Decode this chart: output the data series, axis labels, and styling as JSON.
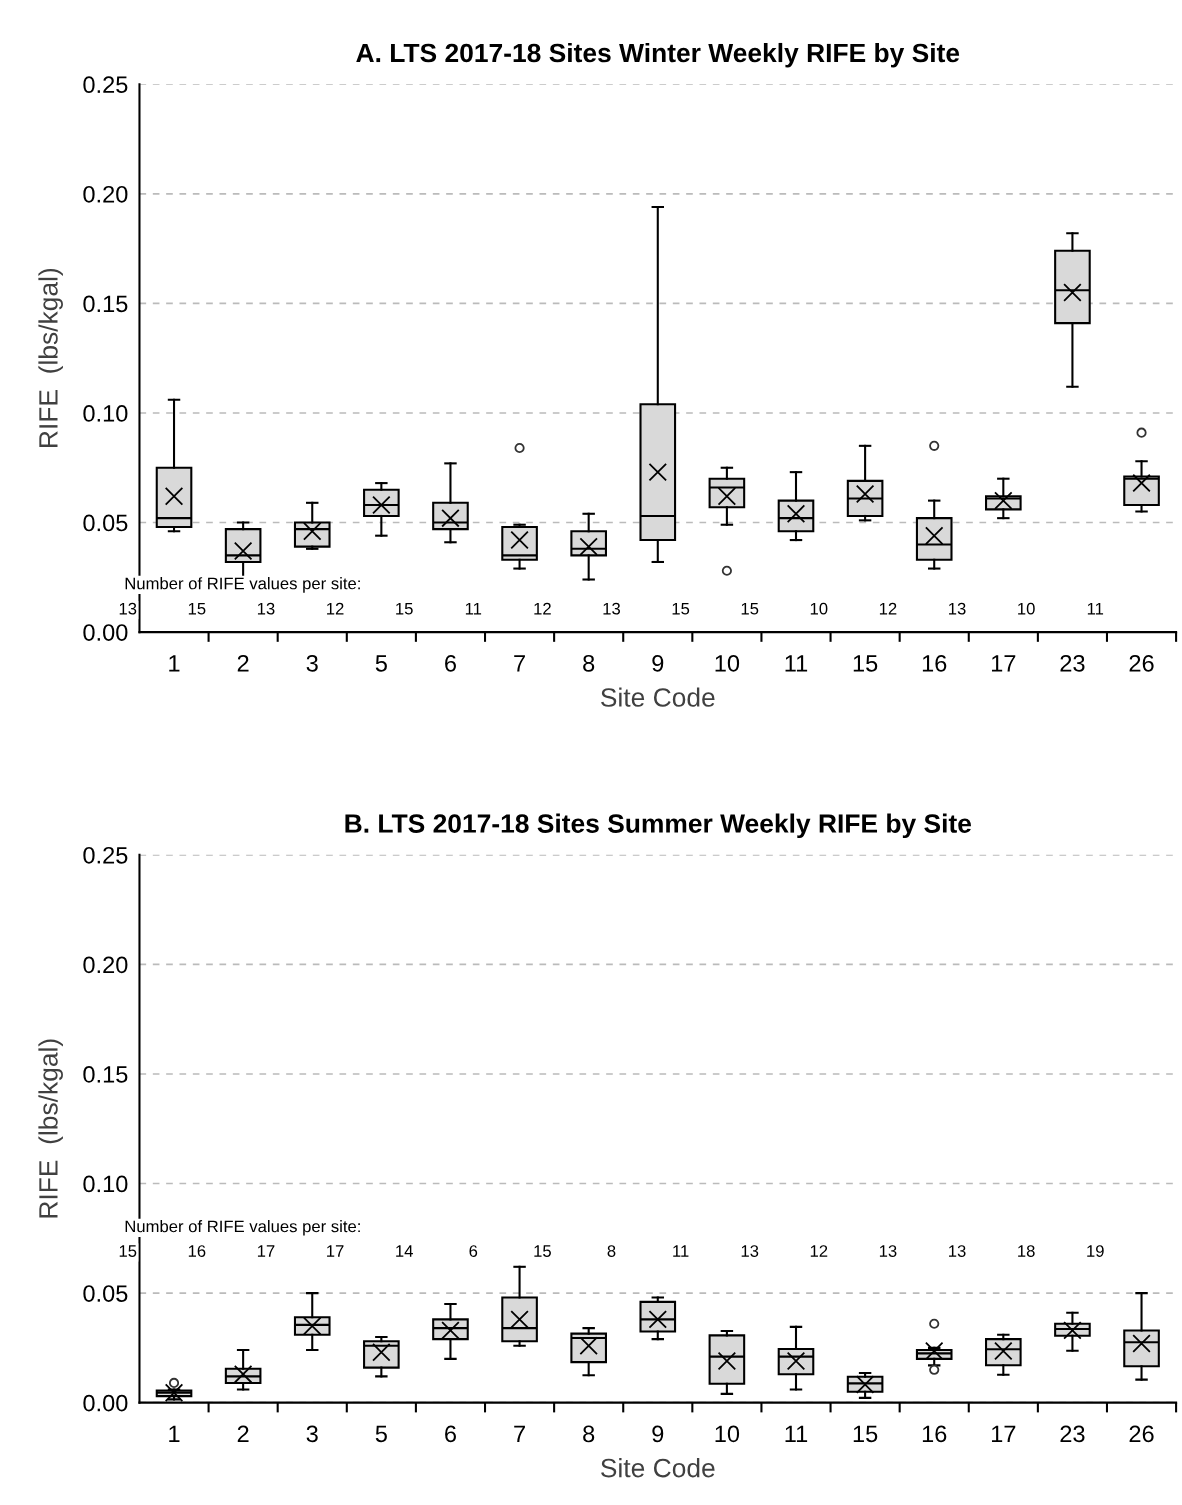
{
  "chart_data": [
    {
      "type": "box",
      "title": "A. LTS 2017-18 Sites Winter Weekly RIFE by Site",
      "xlabel": "Site Code",
      "ylabel": "RIFE  (lbs/kgal)",
      "categories": [
        "1",
        "2",
        "3",
        "5",
        "6",
        "7",
        "8",
        "9",
        "10",
        "11",
        "15",
        "16",
        "17",
        "23",
        "26"
      ],
      "boxes": [
        {
          "low": 0.046,
          "q1": 0.048,
          "median": 0.052,
          "q3": 0.075,
          "high": 0.106,
          "mean": 0.062
        },
        {
          "low": 0.024,
          "q1": 0.032,
          "median": 0.035,
          "q3": 0.047,
          "high": 0.05,
          "mean": 0.037
        },
        {
          "low": 0.038,
          "q1": 0.039,
          "median": 0.047,
          "q3": 0.05,
          "high": 0.059,
          "mean": 0.046
        },
        {
          "low": 0.044,
          "q1": 0.053,
          "median": 0.058,
          "q3": 0.065,
          "high": 0.068,
          "mean": 0.058
        },
        {
          "low": 0.041,
          "q1": 0.047,
          "median": 0.05,
          "q3": 0.059,
          "high": 0.077,
          "mean": 0.052
        },
        {
          "low": 0.029,
          "q1": 0.033,
          "median": 0.035,
          "q3": 0.048,
          "high": 0.049,
          "mean": 0.042,
          "outliers": [
            0.084
          ]
        },
        {
          "low": 0.024,
          "q1": 0.035,
          "median": 0.038,
          "q3": 0.046,
          "high": 0.054,
          "mean": 0.039
        },
        {
          "low": 0.032,
          "q1": 0.042,
          "median": 0.053,
          "q3": 0.104,
          "high": 0.194,
          "mean": 0.073
        },
        {
          "low": 0.049,
          "q1": 0.057,
          "median": 0.066,
          "q3": 0.07,
          "high": 0.075,
          "mean": 0.062,
          "outliers": [
            0.028
          ]
        },
        {
          "low": 0.042,
          "q1": 0.046,
          "median": 0.052,
          "q3": 0.06,
          "high": 0.073,
          "mean": 0.054
        },
        {
          "low": 0.051,
          "q1": 0.053,
          "median": 0.061,
          "q3": 0.069,
          "high": 0.085,
          "mean": 0.063
        },
        {
          "low": 0.029,
          "q1": 0.033,
          "median": 0.04,
          "q3": 0.052,
          "high": 0.06,
          "mean": 0.044,
          "outliers": [
            0.085
          ]
        },
        {
          "low": 0.052,
          "q1": 0.056,
          "median": 0.061,
          "q3": 0.062,
          "high": 0.07,
          "mean": 0.06
        },
        {
          "low": 0.112,
          "q1": 0.141,
          "median": 0.156,
          "q3": 0.174,
          "high": 0.182,
          "mean": 0.155
        },
        {
          "low": 0.055,
          "q1": 0.058,
          "median": 0.07,
          "q3": 0.071,
          "high": 0.078,
          "mean": 0.068,
          "outliers": [
            0.091
          ]
        }
      ],
      "color": "#d9d9d9",
      "ylim": [
        0,
        0.25
      ],
      "yticks": [
        {
          "value": 0,
          "label": "0.00"
        },
        {
          "value": 0.05,
          "label": "0.05"
        },
        {
          "value": 0.1,
          "label": "0.10"
        },
        {
          "value": 0.15,
          "label": "0.15"
        },
        {
          "value": 0.2,
          "label": "0.20"
        },
        {
          "value": 0.25,
          "label": "0.25"
        }
      ],
      "grid": "y",
      "marker": "cross",
      "annotations": [
        "Number of RIFE values per site:",
        "13",
        "15",
        "13",
        "12",
        "15",
        "11",
        "12",
        "13",
        "15",
        "15",
        "10",
        "12",
        "13",
        "10",
        "11"
      ]
    },
    {
      "type": "box",
      "title": "B. LTS 2017-18 Sites Summer Weekly RIFE by Site",
      "xlabel": "Site Code",
      "ylabel": "RIFE  (lbs/kgal)",
      "categories": [
        "1",
        "2",
        "3",
        "5",
        "6",
        "7",
        "8",
        "9",
        "10",
        "11",
        "15",
        "16",
        "17",
        "23",
        "26"
      ],
      "boxes": [
        {
          "low": 0.0015,
          "q1": 0.003,
          "median": 0.0045,
          "q3": 0.0055,
          "high": 0.006,
          "mean": 0.0045,
          "outliers": [
            0.009
          ]
        },
        {
          "low": 0.006,
          "q1": 0.009,
          "median": 0.012,
          "q3": 0.0155,
          "high": 0.024,
          "mean": 0.013
        },
        {
          "low": 0.024,
          "q1": 0.031,
          "median": 0.0355,
          "q3": 0.039,
          "high": 0.05,
          "mean": 0.035
        },
        {
          "low": 0.012,
          "q1": 0.016,
          "median": 0.026,
          "q3": 0.028,
          "high": 0.03,
          "mean": 0.023
        },
        {
          "low": 0.02,
          "q1": 0.029,
          "median": 0.034,
          "q3": 0.038,
          "high": 0.045,
          "mean": 0.033
        },
        {
          "low": 0.026,
          "q1": 0.028,
          "median": 0.034,
          "q3": 0.048,
          "high": 0.062,
          "mean": 0.038
        },
        {
          "low": 0.0125,
          "q1": 0.0185,
          "median": 0.0295,
          "q3": 0.0315,
          "high": 0.034,
          "mean": 0.026
        },
        {
          "low": 0.029,
          "q1": 0.0325,
          "median": 0.038,
          "q3": 0.046,
          "high": 0.048,
          "mean": 0.038
        },
        {
          "low": 0.004,
          "q1": 0.0086,
          "median": 0.021,
          "q3": 0.0307,
          "high": 0.0327,
          "mean": 0.019
        },
        {
          "low": 0.006,
          "q1": 0.013,
          "median": 0.021,
          "q3": 0.0245,
          "high": 0.0346,
          "mean": 0.019
        },
        {
          "low": 0.0022,
          "q1": 0.005,
          "median": 0.0088,
          "q3": 0.0118,
          "high": 0.0135,
          "mean": 0.0083
        },
        {
          "low": 0.017,
          "q1": 0.02,
          "median": 0.0225,
          "q3": 0.024,
          "high": 0.025,
          "mean": 0.0236,
          "outliers": [
            0.036,
            0.015
          ]
        },
        {
          "low": 0.0127,
          "q1": 0.0171,
          "median": 0.0244,
          "q3": 0.029,
          "high": 0.031,
          "mean": 0.0236
        },
        {
          "low": 0.0237,
          "q1": 0.0305,
          "median": 0.0336,
          "q3": 0.036,
          "high": 0.041,
          "mean": 0.033
        },
        {
          "low": 0.0105,
          "q1": 0.0166,
          "median": 0.0276,
          "q3": 0.0329,
          "high": 0.05,
          "mean": 0.027
        }
      ],
      "color": "#d9d9d9",
      "ylim": [
        0,
        0.25
      ],
      "yticks": [
        {
          "value": 0,
          "label": "0.00"
        },
        {
          "value": 0.05,
          "label": "0.05"
        },
        {
          "value": 0.1,
          "label": "0.10"
        },
        {
          "value": 0.15,
          "label": "0.15"
        },
        {
          "value": 0.2,
          "label": "0.20"
        },
        {
          "value": 0.25,
          "label": "0.25"
        }
      ],
      "grid": "y",
      "marker": "cross",
      "annotations": [
        "Number of RIFE values per site:",
        "15",
        "16",
        "17",
        "17",
        "14",
        "6",
        "15",
        "8",
        "11",
        "13",
        "12",
        "13",
        "13",
        "18",
        "19"
      ]
    }
  ]
}
